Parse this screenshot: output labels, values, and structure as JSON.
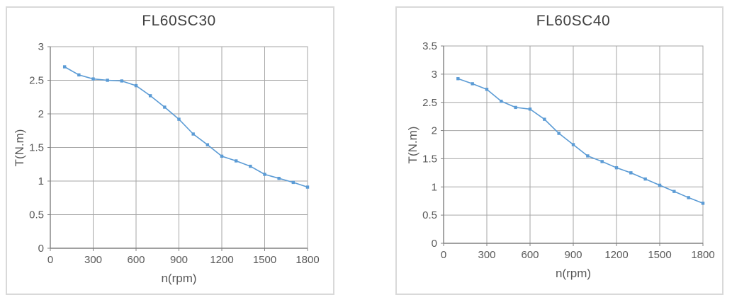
{
  "colors": {
    "series_line": "#5B9BD5",
    "gridline": "#a6a6a6",
    "axis_line": "#808080",
    "tick_label": "#595959",
    "title_text": "#404040",
    "panel_border": "#d9d9d9",
    "background": "#ffffff"
  },
  "chart_data": [
    {
      "type": "line",
      "title": "FL60SC30",
      "xlabel": "n(rpm)",
      "ylabel": "T(N.m)",
      "x": [
        100,
        200,
        300,
        400,
        500,
        600,
        700,
        800,
        900,
        1000,
        1100,
        1200,
        1300,
        1400,
        1500,
        1600,
        1700,
        1800
      ],
      "y": [
        2.7,
        2.58,
        2.52,
        2.5,
        2.49,
        2.42,
        2.27,
        2.1,
        1.92,
        1.7,
        1.54,
        1.37,
        1.3,
        1.22,
        1.1,
        1.04,
        0.98,
        0.91
      ],
      "xlim": [
        0,
        1800
      ],
      "ylim": [
        0,
        3
      ],
      "xticks": [
        0,
        300,
        600,
        900,
        1200,
        1500,
        1800
      ],
      "yticks": [
        0,
        0.5,
        1,
        1.5,
        2,
        2.5,
        3
      ],
      "grid": true,
      "legend": false,
      "marker": "square"
    },
    {
      "type": "line",
      "title": "FL60SC40",
      "xlabel": "n(rpm)",
      "ylabel": "T(N.m)",
      "x": [
        100,
        200,
        300,
        400,
        500,
        600,
        700,
        800,
        900,
        1000,
        1100,
        1200,
        1300,
        1400,
        1500,
        1600,
        1700,
        1800
      ],
      "y": [
        2.92,
        2.83,
        2.73,
        2.52,
        2.41,
        2.38,
        2.2,
        1.95,
        1.75,
        1.55,
        1.45,
        1.34,
        1.25,
        1.14,
        1.03,
        0.92,
        0.81,
        0.71
      ],
      "xlim": [
        0,
        1800
      ],
      "ylim": [
        0,
        3.5
      ],
      "xticks": [
        0,
        300,
        600,
        900,
        1200,
        1500,
        1800
      ],
      "yticks": [
        0,
        0.5,
        1,
        1.5,
        2,
        2.5,
        3,
        3.5
      ],
      "grid": true,
      "legend": false,
      "marker": "square"
    }
  ]
}
